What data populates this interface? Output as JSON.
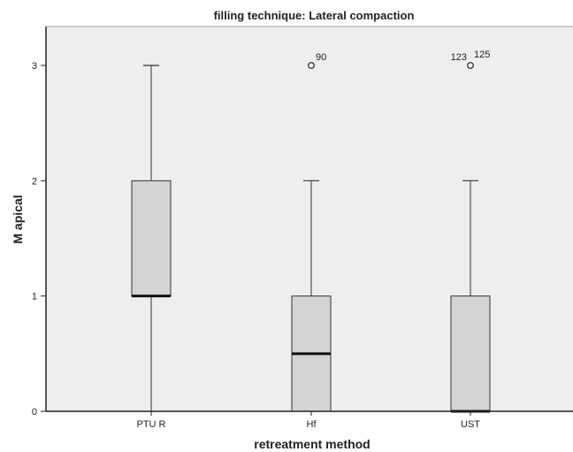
{
  "chart_data": {
    "type": "boxplot",
    "title": "filling technique: Lateral compaction",
    "xlabel": "retreatment method",
    "ylabel": "M apical",
    "ylim": [
      0,
      3.35
    ],
    "yticks": [
      0,
      1,
      2,
      3
    ],
    "grid": false,
    "colors": {
      "plot_background": "#eeeeee",
      "box_fill": "#d4d4d4",
      "line": "#333333",
      "frame": "#222222"
    },
    "categories": [
      "PTU R",
      "Hf",
      "UST"
    ],
    "boxes": [
      {
        "category": "PTU R",
        "min": 0,
        "q1": 1,
        "median": 1,
        "q3": 2,
        "max": 3,
        "outliers": []
      },
      {
        "category": "Hf",
        "min": 0,
        "q1": 0,
        "median": 0.5,
        "q3": 1,
        "max": 2,
        "outliers": [
          {
            "value": 3,
            "labels": [
              "90"
            ]
          }
        ]
      },
      {
        "category": "UST",
        "min": 0,
        "q1": 0,
        "median": 0,
        "q3": 1,
        "max": 2,
        "outliers": [
          {
            "value": 3,
            "labels": [
              "123",
              "125"
            ]
          }
        ]
      }
    ]
  }
}
